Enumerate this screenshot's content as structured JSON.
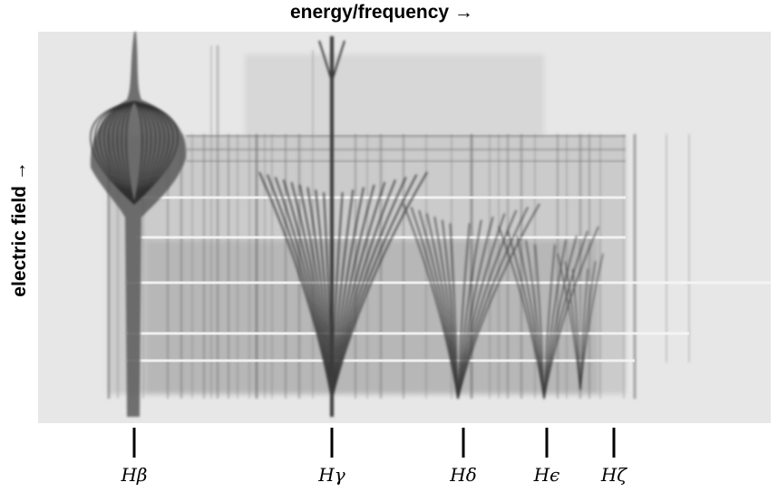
{
  "axes": {
    "x_label": "energy/frequency →",
    "y_label": "electric field →"
  },
  "lines": [
    {
      "id": "hbeta",
      "label": "Hβ"
    },
    {
      "id": "hgamma",
      "label": "Hγ"
    },
    {
      "id": "hdelta",
      "label": "Hδ"
    },
    {
      "id": "hepsilon",
      "label": "Hϵ"
    },
    {
      "id": "hzeta",
      "label": "Hζ"
    }
  ],
  "colors": {
    "plate_background": "#e6e6e6",
    "plate_shading": "#9a9a9a",
    "spectral_line": "#3a3a3a",
    "marker": "#000000"
  }
}
